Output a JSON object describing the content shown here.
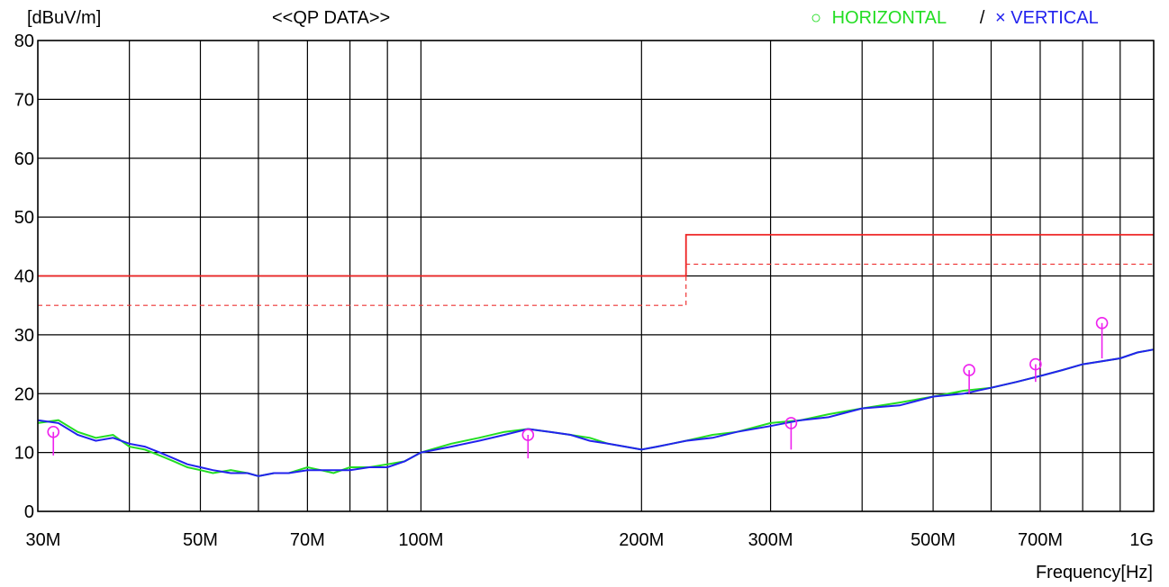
{
  "chart_data": {
    "type": "line",
    "title": "<<QP DATA>>",
    "ylabel": "[dBuV/m]",
    "xlabel": "Frequency[Hz]",
    "x_scale": "log",
    "xlim": [
      30,
      1000
    ],
    "ylim": [
      0,
      80
    ],
    "y_ticks": [
      0,
      10,
      20,
      30,
      40,
      50,
      60,
      70,
      80
    ],
    "y_tick_labels": [
      "0",
      "10",
      "20",
      "30",
      "40",
      "50",
      "60",
      "70",
      "80"
    ],
    "x_gridlines_MHz": [
      30,
      40,
      50,
      60,
      70,
      80,
      90,
      100,
      200,
      300,
      400,
      500,
      600,
      700,
      800,
      900,
      1000
    ],
    "x_tick_labels": [
      {
        "x": 30,
        "label": "30M"
      },
      {
        "x": 50,
        "label": "50M"
      },
      {
        "x": 70,
        "label": "70M"
      },
      {
        "x": 100,
        "label": "100M"
      },
      {
        "x": 200,
        "label": "200M"
      },
      {
        "x": 300,
        "label": "300M"
      },
      {
        "x": 500,
        "label": "500M"
      },
      {
        "x": 700,
        "label": "700M"
      },
      {
        "x": 1000,
        "label": "1G"
      }
    ],
    "grid": true,
    "legend": {
      "position": "top-right",
      "separator": "/",
      "items": [
        {
          "symbol": "○",
          "label": "HORIZONTAL",
          "color": "#22dd22"
        },
        {
          "symbol": "×",
          "label": "VERTICAL",
          "color": "#2222ee"
        }
      ]
    },
    "limit_lines": [
      {
        "name": "limit",
        "style": "solid",
        "color": "#ee2222",
        "x": [
          30,
          230,
          230,
          1000
        ],
        "y": [
          40,
          40,
          47,
          47
        ]
      },
      {
        "name": "limit-margin",
        "style": "dashed",
        "color": "#ee3333",
        "x": [
          30,
          230,
          230,
          1000
        ],
        "y": [
          35,
          35,
          42,
          42
        ]
      }
    ],
    "series": [
      {
        "color": "#22dd22",
        "x": [
          30,
          32,
          34,
          36,
          38,
          40,
          42,
          44,
          46,
          48,
          50,
          52,
          55,
          58,
          60,
          63,
          66,
          70,
          73,
          76,
          80,
          85,
          90,
          95,
          100,
          110,
          120,
          130,
          140,
          150,
          160,
          170,
          180,
          190,
          200,
          210,
          220,
          230,
          250,
          270,
          300,
          330,
          360,
          400,
          450,
          500,
          550,
          600,
          650,
          700,
          750,
          800,
          850,
          900,
          950,
          1000
        ],
        "y": [
          15,
          15.5,
          13.5,
          12.5,
          13,
          11,
          10.5,
          9.5,
          8.5,
          7.5,
          7,
          6.5,
          7,
          6.5,
          6,
          6.5,
          6.5,
          7.5,
          7,
          6.5,
          7.5,
          7.5,
          8,
          8.5,
          10,
          11.5,
          12.5,
          13.5,
          14,
          13.5,
          13,
          12.5,
          11.5,
          11,
          10.5,
          11,
          11.5,
          12,
          13,
          13.5,
          15,
          15.5,
          16.5,
          17.5,
          18.5,
          19.5,
          20.5,
          21,
          22,
          23,
          24,
          25,
          25.5,
          26,
          27,
          27.5
        ]
      },
      {
        "color": "#2222ee",
        "x": [
          30,
          32,
          34,
          36,
          38,
          40,
          42,
          44,
          46,
          48,
          50,
          52,
          55,
          58,
          60,
          63,
          66,
          70,
          73,
          76,
          80,
          85,
          90,
          95,
          100,
          110,
          120,
          130,
          140,
          150,
          160,
          170,
          180,
          190,
          200,
          210,
          220,
          230,
          250,
          270,
          300,
          330,
          360,
          400,
          450,
          500,
          550,
          600,
          650,
          700,
          750,
          800,
          850,
          900,
          950,
          1000
        ],
        "y": [
          15.5,
          15,
          13,
          12,
          12.5,
          11.5,
          11,
          10,
          9,
          8,
          7.5,
          7,
          6.5,
          6.5,
          6,
          6.5,
          6.5,
          7,
          7,
          7,
          7,
          7.5,
          7.5,
          8.5,
          10,
          11,
          12,
          13,
          14,
          13.5,
          13,
          12,
          11.5,
          11,
          10.5,
          11,
          11.5,
          12,
          12.5,
          13.5,
          14.5,
          15.5,
          16,
          17.5,
          18,
          19.5,
          20,
          21,
          22,
          23,
          24,
          25,
          25.5,
          26,
          27,
          27.5
        ]
      }
    ],
    "qp_markers": {
      "color": "#ee22ee",
      "points": [
        {
          "x": 31.5,
          "y": 13.5,
          "base": 9.5
        },
        {
          "x": 140,
          "y": 13,
          "base": 9
        },
        {
          "x": 320,
          "y": 15,
          "base": 10.5
        },
        {
          "x": 560,
          "y": 24,
          "base": 20
        },
        {
          "x": 690,
          "y": 25,
          "base": 22
        },
        {
          "x": 850,
          "y": 32,
          "base": 26
        }
      ]
    }
  }
}
